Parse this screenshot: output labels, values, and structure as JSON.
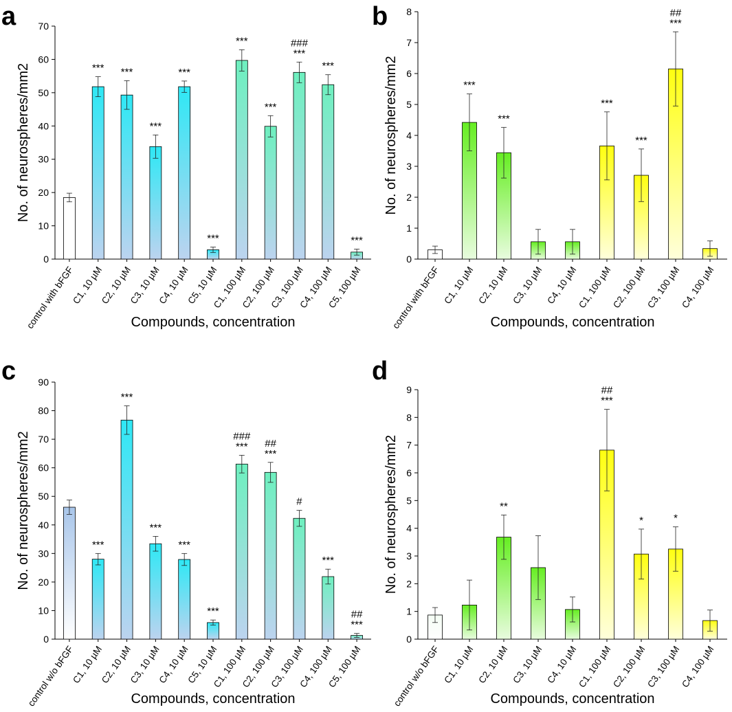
{
  "chart_data": [
    {
      "panel": "a",
      "type": "bar",
      "xlabel": "Compounds, concentration",
      "ylabel": "No. of neurospheres/mm2",
      "ylim": [
        0,
        70
      ],
      "yticks": [
        0,
        10,
        20,
        30,
        40,
        50,
        60,
        70
      ],
      "categories": [
        "control with bFGF",
        "C1, 10 µM",
        "C2, 10 µM",
        "C3, 10 µM",
        "C4, 10 µM",
        "C5, 10 µM",
        "C1, 100 µM",
        "C2, 100 µM",
        "C3, 100 µM",
        "C4, 100 µM",
        "C5, 100 µM"
      ],
      "values": [
        18.5,
        51.8,
        49.3,
        33.8,
        51.8,
        2.8,
        59.7,
        39.9,
        56.1,
        52.4,
        2.1
      ],
      "errors": [
        1.3,
        3.0,
        4.3,
        3.5,
        1.7,
        0.8,
        3.2,
        3.2,
        3.1,
        3.0,
        0.9
      ],
      "annotations": [
        "",
        "***",
        "***",
        "***",
        "***",
        "***",
        "***",
        "***",
        "###\n***",
        "***",
        "***"
      ],
      "colors": [
        "#ffffff",
        "#2ee8f5",
        "#2ee8f5",
        "#2ee8f5",
        "#2ee8f5",
        "#2ee8f5",
        "#6ef0bf",
        "#6ef0bf",
        "#6ef0bf",
        "#6ef0bf",
        "#6ef0bf"
      ]
    },
    {
      "panel": "b",
      "type": "bar",
      "xlabel": "Compounds, concentration",
      "ylabel": "No. of neurospheres/mm2",
      "ylim": [
        0,
        8
      ],
      "yticks": [
        0,
        1,
        2,
        3,
        4,
        5,
        6,
        7,
        8
      ],
      "categories": [
        "control with bFGF",
        "C1, 10 µM",
        "C2, 10 µM",
        "C3, 10 µM",
        "C4, 10 µM",
        "C1, 100 µM",
        "C2, 100 µM",
        "C3, 100 µM",
        "C4, 100 µM"
      ],
      "values": [
        0.3,
        4.42,
        3.44,
        0.56,
        0.56,
        3.66,
        2.71,
        6.15,
        0.34
      ],
      "errors": [
        0.12,
        0.92,
        0.82,
        0.4,
        0.4,
        1.1,
        0.85,
        1.2,
        0.25
      ],
      "annotations": [
        "",
        "***",
        "***",
        "",
        "",
        "***",
        "***",
        "##\n***",
        ""
      ],
      "colors": [
        "#ffffff",
        "#66ee22",
        "#66ee22",
        "#66ee22",
        "#66ee22",
        "#ffff10",
        "#ffff10",
        "#ffff10",
        "#ffff10"
      ]
    },
    {
      "panel": "c",
      "type": "bar",
      "xlabel": "Compounds, concentration",
      "ylabel": "No. of neurospheres/mm2",
      "ylim": [
        0,
        90
      ],
      "yticks": [
        0,
        10,
        20,
        30,
        40,
        50,
        60,
        70,
        80,
        90
      ],
      "categories": [
        "control w/o bFGF",
        "C1, 10 µM",
        "C2, 10 µM",
        "C3, 10 µM",
        "C4, 10 µM",
        "C5, 10 µM",
        "C1, 100 µM",
        "C2, 100 µM",
        "C3, 100 µM",
        "C4, 100 µM",
        "C5, 100 µM"
      ],
      "values": [
        46.2,
        28.0,
        76.7,
        33.4,
        27.9,
        5.8,
        61.3,
        58.4,
        42.3,
        21.9,
        1.3
      ],
      "errors": [
        2.5,
        2.0,
        5.0,
        2.6,
        2.1,
        0.9,
        3.1,
        3.5,
        2.8,
        2.6,
        0.7
      ],
      "annotations": [
        "",
        "***",
        "***",
        "***",
        "***",
        "***",
        "###\n***",
        "##\n***",
        "#",
        "***",
        "##\n***"
      ],
      "colors": [
        "#f4f8fd",
        "#2ee8f5",
        "#2ee8f5",
        "#2ee8f5",
        "#2ee8f5",
        "#2ee8f5",
        "#6ef0bf",
        "#6ef0bf",
        "#6ef0bf",
        "#6ef0bf",
        "#6ef0bf"
      ]
    },
    {
      "panel": "d",
      "type": "bar",
      "xlabel": "Compounds, concentration",
      "ylabel": "No. of neurospheres/mm2",
      "ylim": [
        0,
        9
      ],
      "yticks": [
        0,
        1,
        2,
        3,
        4,
        5,
        6,
        7,
        8,
        9
      ],
      "categories": [
        "control w/o bFGF",
        "C1, 10 µM",
        "C2, 10 µM",
        "C3, 10 µM",
        "C4, 10 µM",
        "C1, 100 µM",
        "C2, 100 µM",
        "C3, 100 µM",
        "C4, 100 µM"
      ],
      "values": [
        0.87,
        1.23,
        3.68,
        2.58,
        1.07,
        6.82,
        3.07,
        3.25,
        0.67
      ],
      "errors": [
        0.27,
        0.9,
        0.8,
        1.15,
        0.45,
        1.47,
        0.9,
        0.8,
        0.38
      ],
      "annotations": [
        "",
        "",
        "**",
        "",
        "",
        "##\n***",
        "*",
        "*",
        ""
      ],
      "colors": [
        "#f4fdf4",
        "#66ee22",
        "#66ee22",
        "#66ee22",
        "#66ee22",
        "#ffff10",
        "#ffff10",
        "#ffff10",
        "#ffff10"
      ]
    }
  ]
}
